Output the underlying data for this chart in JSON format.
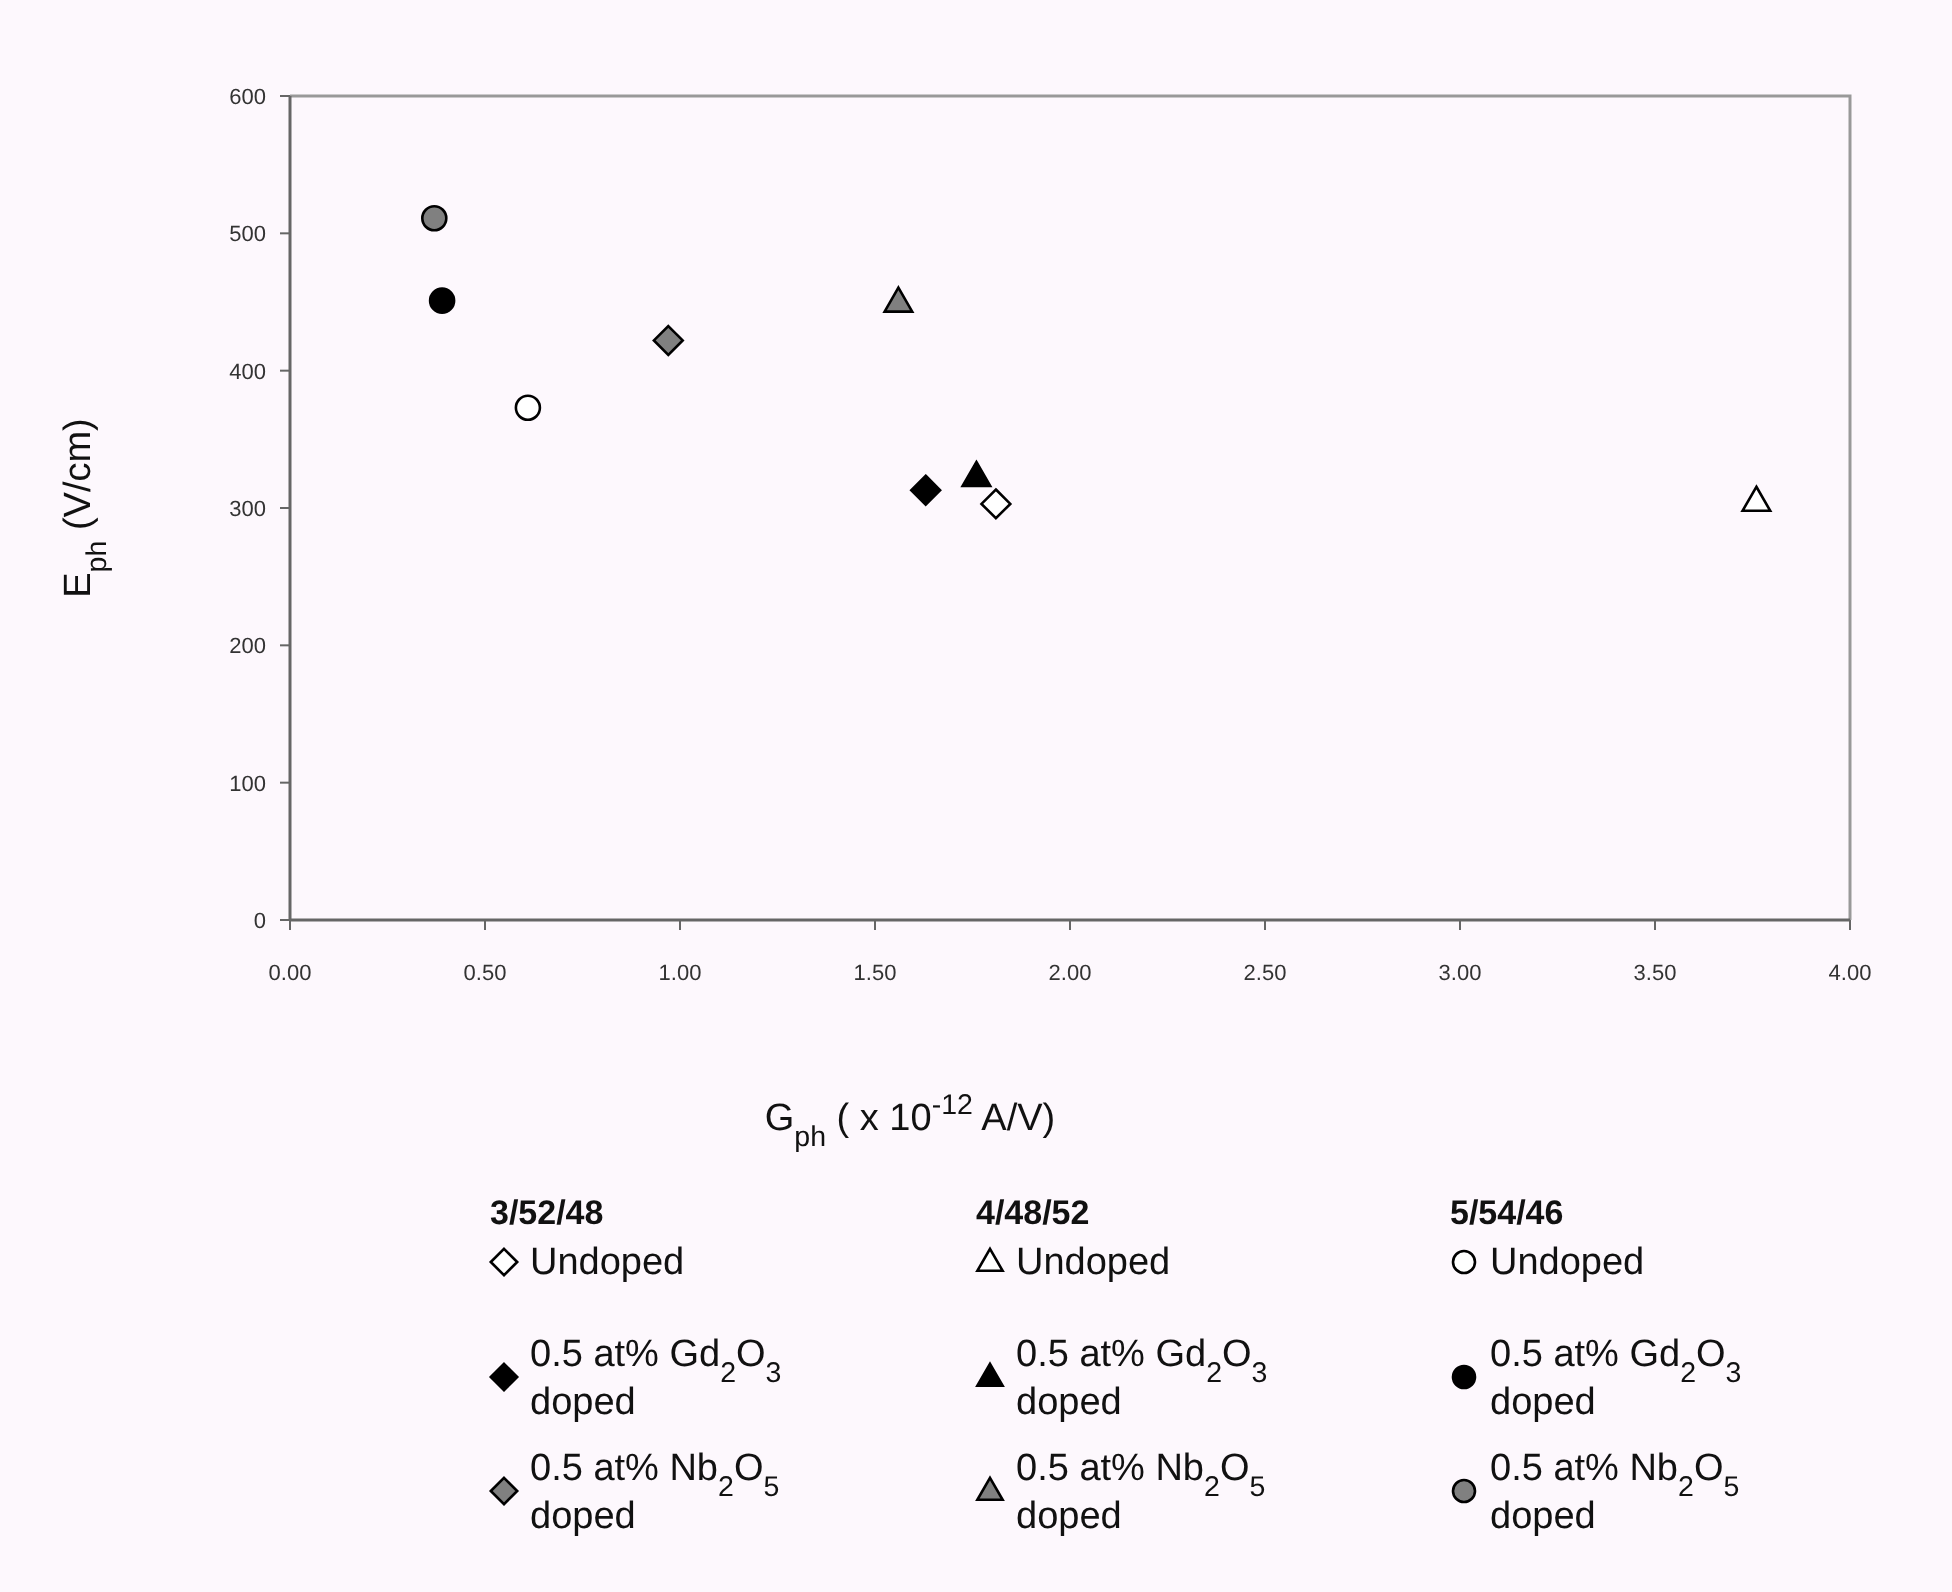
{
  "chart_data": {
    "type": "scatter",
    "xlabel": "G$_{ph}$ ( x 10$^{-12}$ A/V)",
    "ylabel": "E$_{ph}$ (V/cm)",
    "xlim": [
      0,
      4
    ],
    "xticks": [
      {
        "value": 0,
        "label": "0.00"
      },
      {
        "value": 0.5,
        "label": "0.50"
      },
      {
        "value": 1,
        "label": "1.00"
      },
      {
        "value": 1.5,
        "label": "1.50"
      },
      {
        "value": 2,
        "label": "2.00"
      },
      {
        "value": 2.5,
        "label": "2.50"
      },
      {
        "value": 3,
        "label": "3.00"
      },
      {
        "value": 3.5,
        "label": "3.50"
      },
      {
        "value": 4,
        "label": "4.00"
      }
    ],
    "ylim": [
      0,
      600
    ],
    "yticks": [
      0,
      100,
      200,
      300,
      400,
      500,
      600
    ],
    "grid": false,
    "legend": "bottom",
    "annotations": [
      "3/52/48",
      "4/48/52",
      "5/54/46"
    ],
    "series": [
      {
        "name": "Undoped",
        "marker": "diamond",
        "color": "#ffffff",
        "x": [
          1.81
        ],
        "values": [
          303
        ]
      },
      {
        "name": "0.5 at% Gd$_{2}$O$_{3}$ doped",
        "marker": "diamond",
        "color": "#000000",
        "x": [
          1.63
        ],
        "values": [
          313
        ]
      },
      {
        "name": "0.5 at% Nb$_{2}$O$_{5}$ doped",
        "marker": "diamond",
        "color": "#808080",
        "x": [
          0.97
        ],
        "values": [
          422
        ]
      },
      {
        "name": "Undoped",
        "marker": "triangle",
        "color": "#ffffff",
        "x": [
          3.76
        ],
        "values": [
          305
        ]
      },
      {
        "name": "0.5 at% Gd$_{2}$O$_{3}$ doped",
        "marker": "triangle",
        "color": "#000000",
        "x": [
          1.76
        ],
        "values": [
          323
        ]
      },
      {
        "name": "0.5 at% Nb$_{2}$O$_{5}$ doped",
        "marker": "triangle",
        "color": "#808080",
        "x": [
          1.56
        ],
        "values": [
          450
        ]
      },
      {
        "name": "Undoped",
        "marker": "circle",
        "color": "#ffffff",
        "x": [
          0.61
        ],
        "values": [
          373
        ]
      },
      {
        "name": "0.5 at% Gd$_{2}$O$_{3}$ doped",
        "marker": "circle",
        "color": "#000000",
        "x": [
          0.39
        ],
        "values": [
          451
        ]
      },
      {
        "name": "0.5 at% Nb$_{2}$O$_{5}$ doped",
        "marker": "circle",
        "color": "#808080",
        "x": [
          0.37
        ],
        "values": [
          511
        ]
      }
    ]
  }
}
